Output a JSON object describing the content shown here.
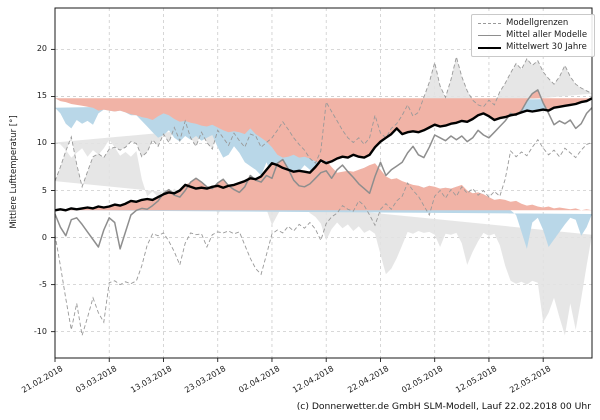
{
  "chart_data": {
    "type": "line",
    "ylabel": "Mittlere Lufttemperatur [°]",
    "caption": "(c) Donnerwetter.de GmbH SLM-Modell, Lauf 22.02.2018 00 Uhr",
    "x_start_date": "21.02.2018",
    "x_interval_days": 1,
    "xlim_days": [
      0,
      99
    ],
    "ylim": [
      -12.8,
      24.4
    ],
    "yticks": [
      -10,
      -5,
      0,
      5,
      10,
      15,
      20
    ],
    "xticks": {
      "days": [
        0,
        10,
        20,
        30,
        40,
        50,
        60,
        70,
        80,
        90
      ],
      "labels": [
        "21.02.2018",
        "03.03.2018",
        "13.03.2018",
        "23.03.2018",
        "02.04.2018",
        "12.04.2018",
        "22.04.2018",
        "02.05.2018",
        "12.05.2018",
        "22.05.2018"
      ]
    },
    "grid": true,
    "legend": {
      "position": "top-right",
      "items": [
        {
          "label": "Modellgrenzen",
          "style": "dashed-gray-line"
        },
        {
          "label": "Mittel aller Modelle",
          "style": "solid-gray-line"
        },
        {
          "label": "Mittelwert 30 Jahre",
          "style": "thick-black-line"
        }
      ]
    },
    "series": [
      {
        "name": "Modellgrenzen (obere Grenze)",
        "role": "upper_bound",
        "values": [
          6.0,
          7.5,
          9.2,
          10.7,
          7.8,
          5.4,
          7.0,
          8.6,
          8.9,
          8.5,
          9.4,
          9.6,
          9.3,
          9.6,
          10.2,
          10.0,
          8.6,
          9.1,
          10.4,
          9.7,
          11.0,
          10.1,
          11.7,
          10.3,
          12.4,
          10.6,
          9.7,
          11.2,
          10.1,
          9.4,
          11.4,
          10.6,
          9.8,
          11.1,
          10.3,
          9.6,
          11.0,
          10.8,
          9.6,
          10.1,
          10.6,
          11.4,
          12.3,
          11.5,
          10.6,
          9.9,
          9.3,
          8.4,
          7.9,
          9.2,
          14.4,
          13.4,
          12.4,
          11.4,
          10.6,
          10.1,
          10.6,
          9.9,
          10.6,
          13.0,
          11.1,
          10.6,
          11.6,
          12.1,
          13.0,
          14.1,
          12.9,
          13.3,
          14.9,
          16.5,
          18.6,
          16.1,
          14.9,
          16.8,
          19.2,
          17.1,
          15.6,
          14.6,
          14.1,
          13.9,
          14.6,
          14.1,
          15.5,
          16.4,
          17.5,
          18.5,
          17.9,
          19.0,
          18.3,
          18.8,
          17.6,
          16.9,
          16.3,
          17.1,
          18.3,
          17.1,
          16.3,
          15.9,
          15.6,
          15.3
        ]
      },
      {
        "name": "Modellgrenzen (untere Grenze)",
        "role": "lower_bound",
        "values": [
          0.3,
          -3.0,
          -6.5,
          -9.8,
          -7.0,
          -10.4,
          -8.5,
          -6.4,
          -8.0,
          -9.0,
          -4.8,
          -4.6,
          -5.0,
          -4.7,
          -4.9,
          -4.6,
          -3.0,
          -0.8,
          0.4,
          0.2,
          0.5,
          -0.4,
          -1.5,
          -2.9,
          -0.6,
          0.5,
          0.3,
          0.4,
          -1.0,
          0.3,
          0.6,
          0.5,
          0.7,
          0.4,
          0.6,
          -0.8,
          -2.2,
          -3.3,
          -3.9,
          -1.8,
          0.4,
          0.8,
          0.5,
          1.2,
          0.7,
          1.4,
          1.0,
          1.6,
          0.9,
          -0.3,
          1.5,
          2.2,
          2.6,
          3.4,
          3.0,
          2.8,
          3.9,
          3.4,
          2.4,
          1.3,
          3.0,
          3.6,
          3.0,
          3.9,
          4.4,
          5.8,
          5.0,
          4.4,
          3.4,
          2.4,
          4.4,
          5.0,
          4.2,
          5.1,
          4.4,
          5.4,
          4.7,
          5.2,
          4.5,
          5.0,
          4.3,
          4.9,
          4.4,
          6.2,
          9.2,
          8.6,
          9.1,
          8.7,
          9.6,
          10.4,
          9.5,
          8.8,
          9.3,
          8.6,
          9.5,
          9.0,
          8.5,
          9.3,
          9.9,
          10.1
        ]
      },
      {
        "name": "Mittel aller Modelle",
        "role": "model_mean",
        "values": [
          2.5,
          1.1,
          0.2,
          1.9,
          2.1,
          1.4,
          0.6,
          -0.2,
          -1.0,
          0.8,
          2.1,
          1.6,
          -1.2,
          0.6,
          2.4,
          2.9,
          3.1,
          3.0,
          3.4,
          3.9,
          4.7,
          5.1,
          4.5,
          4.3,
          5.0,
          5.9,
          6.3,
          5.9,
          5.4,
          5.2,
          5.8,
          6.2,
          5.5,
          5.1,
          4.8,
          5.4,
          6.6,
          6.1,
          5.9,
          6.6,
          6.3,
          7.9,
          8.3,
          7.3,
          6.1,
          5.5,
          5.4,
          5.7,
          6.3,
          6.9,
          7.1,
          6.3,
          7.2,
          7.7,
          7.0,
          6.4,
          5.7,
          5.2,
          4.7,
          6.5,
          8.0,
          6.6,
          7.2,
          7.6,
          8.0,
          9.0,
          9.7,
          8.8,
          8.5,
          9.6,
          10.9,
          10.6,
          10.3,
          10.8,
          10.4,
          10.8,
          10.2,
          10.6,
          11.4,
          10.9,
          10.6,
          11.2,
          11.8,
          12.4,
          13.2,
          13.0,
          13.5,
          14.5,
          15.3,
          15.7,
          14.3,
          13.2,
          12.0,
          12.4,
          12.1,
          12.5,
          11.6,
          12.1,
          13.2,
          13.8
        ]
      },
      {
        "name": "Mittelwert 30 Jahre",
        "role": "mean_30y",
        "values": [
          2.9,
          3.0,
          2.9,
          3.1,
          3.0,
          3.1,
          3.2,
          3.1,
          3.3,
          3.2,
          3.3,
          3.5,
          3.4,
          3.6,
          3.9,
          3.8,
          4.0,
          4.1,
          4.0,
          4.3,
          4.6,
          4.8,
          4.7,
          5.0,
          5.6,
          5.4,
          5.2,
          5.3,
          5.2,
          5.4,
          5.5,
          5.3,
          5.5,
          5.6,
          5.8,
          6.0,
          6.3,
          6.2,
          6.5,
          7.2,
          7.9,
          7.7,
          7.4,
          7.2,
          7.0,
          7.1,
          7.0,
          6.9,
          7.5,
          8.2,
          7.9,
          8.1,
          8.4,
          8.6,
          8.5,
          8.8,
          8.6,
          8.5,
          8.8,
          9.6,
          10.2,
          10.6,
          11.0,
          11.6,
          11.0,
          11.2,
          11.3,
          11.2,
          11.4,
          11.7,
          12.0,
          11.8,
          11.9,
          12.1,
          12.2,
          12.4,
          12.3,
          12.6,
          13.0,
          13.2,
          12.9,
          12.5,
          12.7,
          12.8,
          13.0,
          13.1,
          13.3,
          13.5,
          13.4,
          13.5,
          13.6,
          13.5,
          13.8,
          13.9,
          14.0,
          14.1,
          14.2,
          14.4,
          14.5,
          14.8
        ]
      }
    ],
    "colors": {
      "bounds_band": "#e2e2e2",
      "bounds_line": "#999999",
      "model_mean_line": "#8e8e8e",
      "mean_30y_line": "#000000",
      "below_mean_fill": "#b9d7e8",
      "above_mean_fill": "#f1b3a6",
      "grid": "#cccccc",
      "spine": "#1a1a1a",
      "tick_text": "#1a1a1a"
    }
  }
}
